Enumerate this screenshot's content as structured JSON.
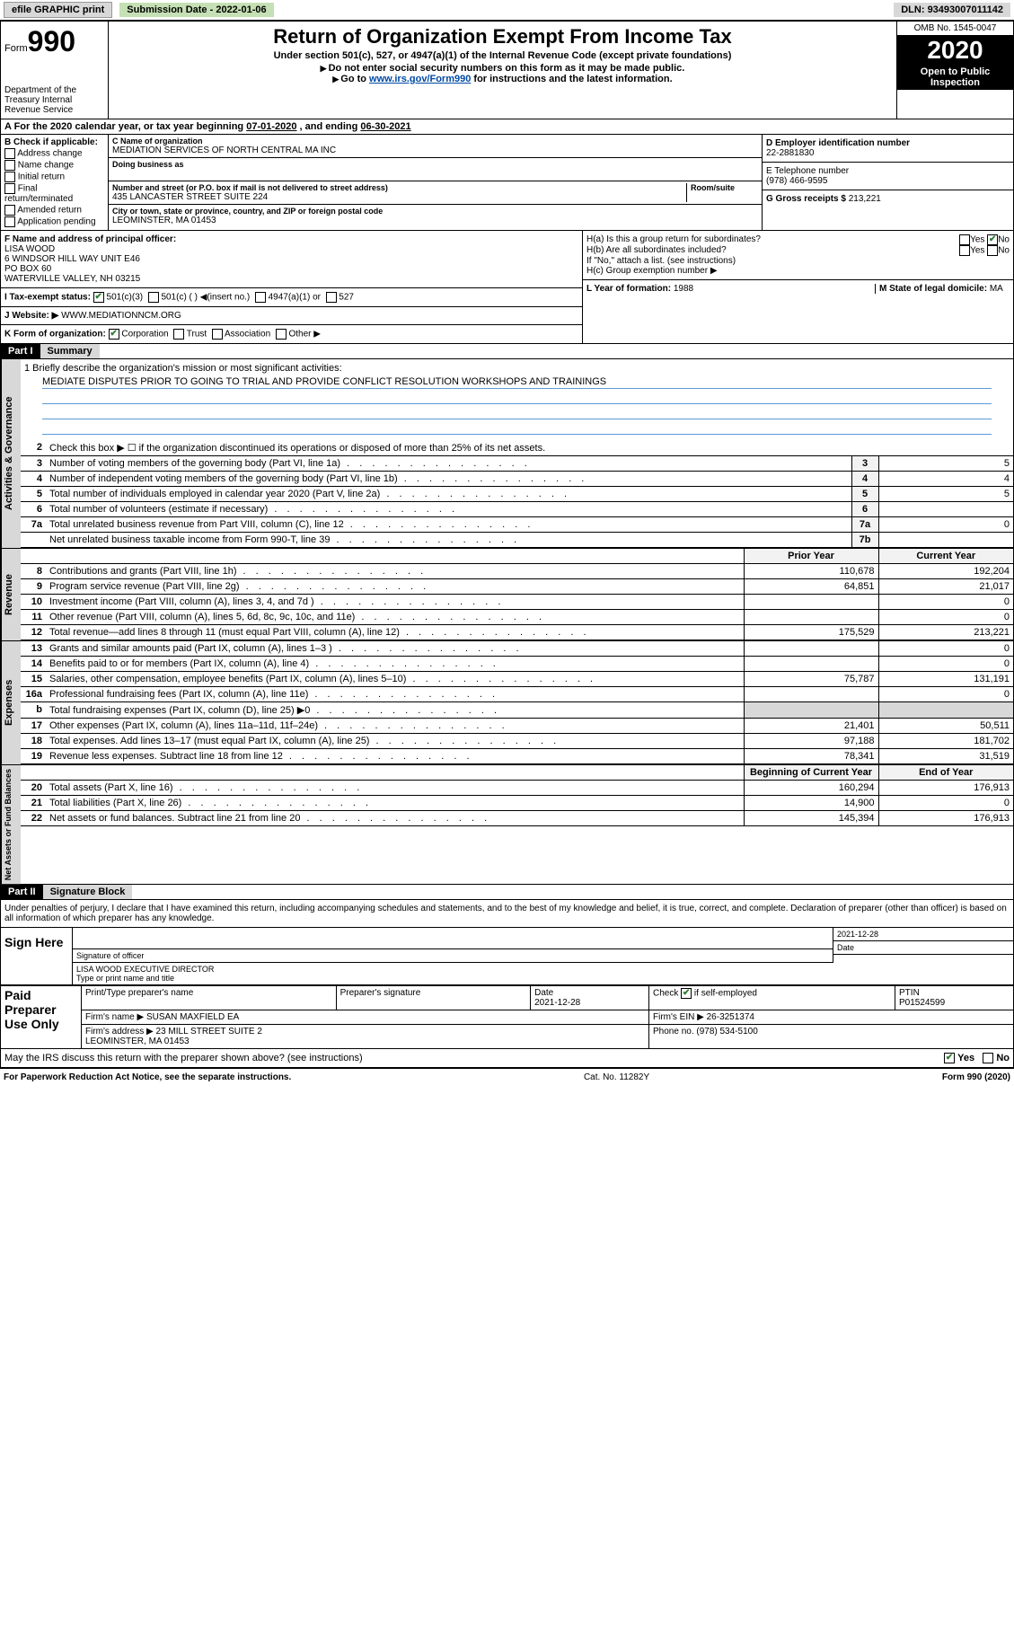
{
  "topbar": {
    "efile": "efile GRAPHIC print",
    "subdate_label": "Submission Date - ",
    "subdate": "2022-01-06",
    "dln_label": "DLN: ",
    "dln": "93493007011142"
  },
  "header": {
    "form_prefix": "Form",
    "form_num": "990",
    "dept": "Department of the Treasury\nInternal Revenue Service",
    "title": "Return of Organization Exempt From Income Tax",
    "subtitle": "Under section 501(c), 527, or 4947(a)(1) of the Internal Revenue Code (except private foundations)",
    "note1": "Do not enter social security numbers on this form as it may be made public.",
    "note2_pre": "Go to ",
    "note2_link": "www.irs.gov/Form990",
    "note2_post": " for instructions and the latest information.",
    "omb": "OMB No. 1545-0047",
    "year": "2020",
    "open": "Open to Public Inspection"
  },
  "row_a": {
    "text_pre": "A For the 2020 calendar year, or tax year beginning ",
    "begin": "07-01-2020",
    "text_mid": " , and ending ",
    "end": "06-30-2021"
  },
  "col_b": {
    "label": "B Check if applicable:",
    "items": [
      "Address change",
      "Name change",
      "Initial return",
      "Final return/terminated",
      "Amended return",
      "Application pending"
    ]
  },
  "col_c": {
    "name_label": "C Name of organization",
    "name": "MEDIATION SERVICES OF NORTH CENTRAL MA INC",
    "dba_label": "Doing business as",
    "addr_label": "Number and street (or P.O. box if mail is not delivered to street address)",
    "room_label": "Room/suite",
    "addr": "435 LANCASTER STREET SUITE 224",
    "city_label": "City or town, state or province, country, and ZIP or foreign postal code",
    "city": "LEOMINSTER, MA  01453"
  },
  "col_d": {
    "label": "D Employer identification number",
    "val": "22-2881830"
  },
  "col_e": {
    "label": "E Telephone number",
    "val": "(978) 466-9595"
  },
  "col_g": {
    "label": "G Gross receipts $ ",
    "val": "213,221"
  },
  "col_f": {
    "label": "F  Name and address of principal officer:",
    "name": "LISA WOOD",
    "line1": "6 WINDSOR HILL WAY UNIT E46",
    "line2": "PO BOX 60",
    "line3": "WATERVILLE VALLEY, NH  03215"
  },
  "col_h": {
    "a_label": "H(a)  Is this a group return for subordinates?",
    "b_label": "H(b)  Are all subordinates included?",
    "b_note": "If \"No,\" attach a list. (see instructions)",
    "c_label": "H(c)  Group exemption number ▶",
    "yes": "Yes",
    "no": "No"
  },
  "col_i": {
    "label": "I  Tax-exempt status:",
    "o1": "501(c)(3)",
    "o2": "501(c) (  ) ◀(insert no.)",
    "o3": "4947(a)(1) or",
    "o4": "527"
  },
  "col_j": {
    "label": "J  Website: ▶",
    "val": "WWW.MEDIATIONNCM.ORG"
  },
  "col_k": {
    "label": "K Form of organization:",
    "o1": "Corporation",
    "o2": "Trust",
    "o3": "Association",
    "o4": "Other ▶"
  },
  "col_l": {
    "label": "L Year of formation: ",
    "val": "1988"
  },
  "col_m": {
    "label": "M State of legal domicile: ",
    "val": "MA"
  },
  "part1": {
    "hdr": "Part I",
    "title": "Summary"
  },
  "summary": {
    "side1": "Activities & Governance",
    "side2": "Revenue",
    "side3": "Expenses",
    "side4": "Net Assets or Fund Balances",
    "q1_label": "1   Briefly describe the organization's mission or most significant activities:",
    "q1_val": "MEDIATE DISPUTES PRIOR TO GOING TO TRIAL AND PROVIDE CONFLICT RESOLUTION WORKSHOPS AND TRAININGS",
    "q2": "Check this box ▶ ☐ if the organization discontinued its operations or disposed of more than 25% of its net assets.",
    "rows_gov": [
      {
        "n": "3",
        "d": "Number of voting members of the governing body (Part VI, line 1a)",
        "box": "3",
        "v": "5"
      },
      {
        "n": "4",
        "d": "Number of independent voting members of the governing body (Part VI, line 1b)",
        "box": "4",
        "v": "4"
      },
      {
        "n": "5",
        "d": "Total number of individuals employed in calendar year 2020 (Part V, line 2a)",
        "box": "5",
        "v": "5"
      },
      {
        "n": "6",
        "d": "Total number of volunteers (estimate if necessary)",
        "box": "6",
        "v": ""
      },
      {
        "n": "7a",
        "d": "Total unrelated business revenue from Part VIII, column (C), line 12",
        "box": "7a",
        "v": "0"
      },
      {
        "n": "",
        "d": "Net unrelated business taxable income from Form 990-T, line 39",
        "box": "7b",
        "v": ""
      }
    ],
    "col_py": "Prior Year",
    "col_cy": "Current Year",
    "rows_rev": [
      {
        "n": "8",
        "d": "Contributions and grants (Part VIII, line 1h)",
        "py": "110,678",
        "cy": "192,204"
      },
      {
        "n": "9",
        "d": "Program service revenue (Part VIII, line 2g)",
        "py": "64,851",
        "cy": "21,017"
      },
      {
        "n": "10",
        "d": "Investment income (Part VIII, column (A), lines 3, 4, and 7d )",
        "py": "",
        "cy": "0"
      },
      {
        "n": "11",
        "d": "Other revenue (Part VIII, column (A), lines 5, 6d, 8c, 9c, 10c, and 11e)",
        "py": "",
        "cy": "0"
      },
      {
        "n": "12",
        "d": "Total revenue—add lines 8 through 11 (must equal Part VIII, column (A), line 12)",
        "py": "175,529",
        "cy": "213,221"
      }
    ],
    "rows_exp": [
      {
        "n": "13",
        "d": "Grants and similar amounts paid (Part IX, column (A), lines 1–3 )",
        "py": "",
        "cy": "0"
      },
      {
        "n": "14",
        "d": "Benefits paid to or for members (Part IX, column (A), line 4)",
        "py": "",
        "cy": "0"
      },
      {
        "n": "15",
        "d": "Salaries, other compensation, employee benefits (Part IX, column (A), lines 5–10)",
        "py": "75,787",
        "cy": "131,191"
      },
      {
        "n": "16a",
        "d": "Professional fundraising fees (Part IX, column (A), line 11e)",
        "py": "",
        "cy": "0"
      },
      {
        "n": "b",
        "d": "Total fundraising expenses (Part IX, column (D), line 25) ▶0",
        "py": "",
        "cy": "",
        "shade": true
      },
      {
        "n": "17",
        "d": "Other expenses (Part IX, column (A), lines 11a–11d, 11f–24e)",
        "py": "21,401",
        "cy": "50,511"
      },
      {
        "n": "18",
        "d": "Total expenses. Add lines 13–17 (must equal Part IX, column (A), line 25)",
        "py": "97,188",
        "cy": "181,702"
      },
      {
        "n": "19",
        "d": "Revenue less expenses. Subtract line 18 from line 12",
        "py": "78,341",
        "cy": "31,519"
      }
    ],
    "col_boy": "Beginning of Current Year",
    "col_eoy": "End of Year",
    "rows_net": [
      {
        "n": "20",
        "d": "Total assets (Part X, line 16)",
        "py": "160,294",
        "cy": "176,913"
      },
      {
        "n": "21",
        "d": "Total liabilities (Part X, line 26)",
        "py": "14,900",
        "cy": "0"
      },
      {
        "n": "22",
        "d": "Net assets or fund balances. Subtract line 21 from line 20",
        "py": "145,394",
        "cy": "176,913"
      }
    ]
  },
  "part2": {
    "hdr": "Part II",
    "title": "Signature Block"
  },
  "sig": {
    "note": "Under penalties of perjury, I declare that I have examined this return, including accompanying schedules and statements, and to the best of my knowledge and belief, it is true, correct, and complete. Declaration of preparer (other than officer) is based on all information of which preparer has any knowledge.",
    "sign_here": "Sign Here",
    "sig_officer": "Signature of officer",
    "date_label": "Date",
    "date": "2021-12-28",
    "name": "LISA WOOD  EXECUTIVE DIRECTOR",
    "name_label": "Type or print name and title"
  },
  "paid": {
    "label": "Paid Preparer Use Only",
    "h1": "Print/Type preparer's name",
    "h2": "Preparer's signature",
    "h3": "Date",
    "h4_pre": "Check",
    "h4_post": "if self-employed",
    "h5": "PTIN",
    "date": "2021-12-28",
    "ptin": "P01524599",
    "firm_label": "Firm's name ▶",
    "firm": "SUSAN MAXFIELD EA",
    "ein_label": "Firm's EIN ▶",
    "ein": "26-3251374",
    "addr_label": "Firm's address ▶",
    "addr": "23 MILL STREET SUITE 2",
    "addr2": "LEOMINSTER, MA  01453",
    "phone_label": "Phone no. ",
    "phone": "(978) 534-5100"
  },
  "discuss": {
    "q": "May the IRS discuss this return with the preparer shown above? (see instructions)",
    "yes": "Yes",
    "no": "No"
  },
  "footer": {
    "left": "For Paperwork Reduction Act Notice, see the separate instructions.",
    "mid": "Cat. No. 11282Y",
    "right": "Form 990 (2020)"
  }
}
